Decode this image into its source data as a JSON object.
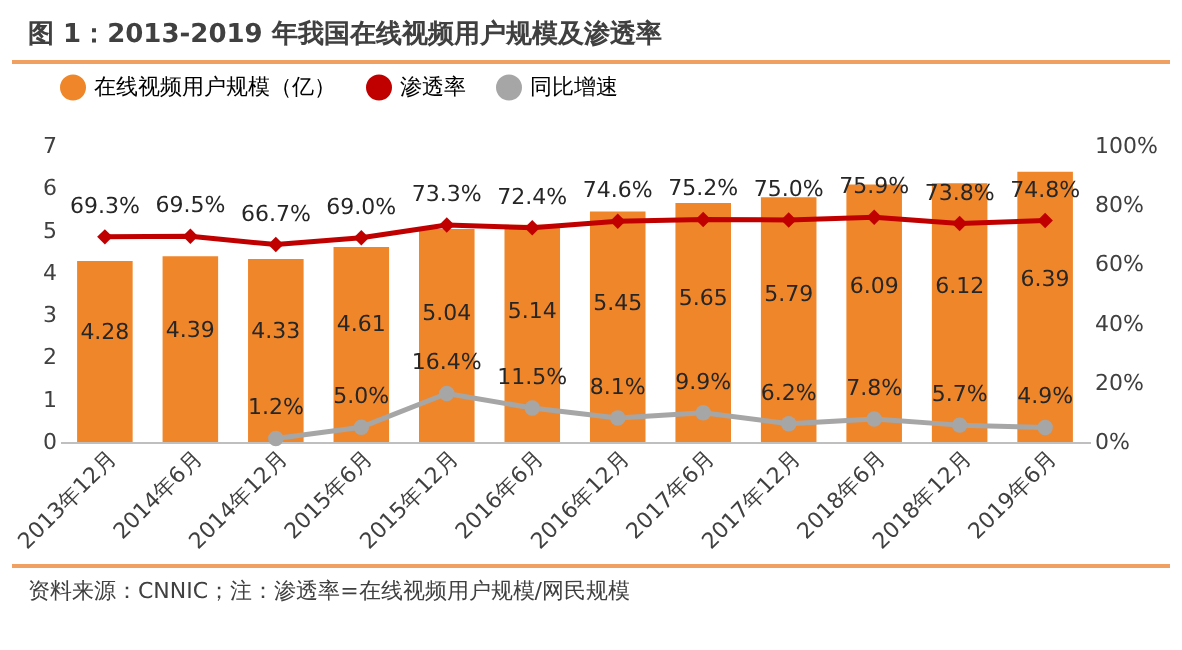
{
  "chart_data": {
    "type": "bar",
    "title": "图 1：2013-2019 年我国在线视频用户规模及渗透率",
    "categories": [
      "2013年12月",
      "2014年6月",
      "2014年12月",
      "2015年6月",
      "2015年12月",
      "2016年6月",
      "2016年12月",
      "2017年6月",
      "2017年12月",
      "2018年6月",
      "2018年12月",
      "2019年6月"
    ],
    "series": [
      {
        "name": "在线视频用户规模（亿）",
        "type": "bar",
        "color": "#f0862a",
        "values": [
          4.28,
          4.39,
          4.33,
          4.61,
          5.04,
          5.14,
          5.45,
          5.65,
          5.79,
          6.09,
          6.12,
          6.39
        ],
        "value_labels": [
          "4.28",
          "4.39",
          "4.33",
          "4.61",
          "5.04",
          "5.14",
          "5.45",
          "5.65",
          "5.79",
          "6.09",
          "6.12",
          "6.39"
        ]
      },
      {
        "name": "渗透率",
        "type": "line",
        "axis": "y2",
        "color": "#c00000",
        "marker": "diamond",
        "values": [
          69.3,
          69.5,
          66.7,
          69.0,
          73.3,
          72.4,
          74.6,
          75.2,
          75.0,
          75.9,
          73.8,
          74.8
        ],
        "value_labels": [
          "69.3%",
          "69.5%",
          "66.7%",
          "69.0%",
          "73.3%",
          "72.4%",
          "74.6%",
          "75.2%",
          "75.0%",
          "75.9%",
          "73.8%",
          "74.8%"
        ]
      },
      {
        "name": "同比增速",
        "type": "line",
        "axis": "y2",
        "color": "#a6a6a6",
        "marker": "circle",
        "values": [
          null,
          null,
          1.2,
          5.0,
          16.4,
          11.5,
          8.1,
          9.9,
          6.2,
          7.8,
          5.7,
          4.9
        ],
        "value_labels": [
          null,
          null,
          "1.2%",
          "5.0%",
          "16.4%",
          "11.5%",
          "8.1%",
          "9.9%",
          "6.2%",
          "7.8%",
          "5.7%",
          "4.9%"
        ]
      }
    ],
    "ylim": [
      0,
      7
    ],
    "yticks": [
      0,
      1,
      2,
      3,
      4,
      5,
      6,
      7
    ],
    "y2lim": [
      0,
      100
    ],
    "y2ticks": [
      {
        "value": 0,
        "label": "0%"
      },
      {
        "value": 20,
        "label": "20%"
      },
      {
        "value": 40,
        "label": "40%"
      },
      {
        "value": 60,
        "label": "60%"
      },
      {
        "value": 80,
        "label": "80%"
      },
      {
        "value": 100,
        "label": "100%"
      }
    ],
    "legend": "top",
    "annotations": [
      "资料来源：CNNIC；注：渗透率=在线视频用户规模/网民规模"
    ]
  }
}
